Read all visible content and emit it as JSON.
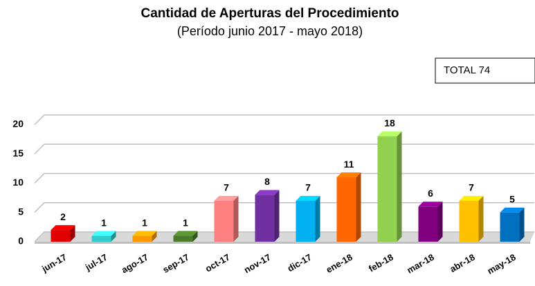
{
  "chart_data": {
    "type": "bar3d",
    "title": "Cantidad de Aperturas del Procedimiento",
    "subtitle": "(Período junio 2017 - mayo 2018)",
    "annotation": "TOTAL 74",
    "categories": [
      "jun-17",
      "jul-17",
      "ago-17",
      "sep-17",
      "oct-17",
      "nov-17",
      "dic-17",
      "ene-18",
      "feb-18",
      "mar-18",
      "abr-18",
      "may-18"
    ],
    "values": [
      2,
      1,
      1,
      1,
      7,
      8,
      7,
      11,
      18,
      6,
      7,
      5
    ],
    "colors": [
      "#e00000",
      "#33cccc",
      "#ff9900",
      "#4a7a2a",
      "#ff8080",
      "#7030a0",
      "#00b0f0",
      "#ff6600",
      "#92d050",
      "#800080",
      "#ffc000",
      "#0070c0"
    ],
    "ylim": [
      0,
      20
    ],
    "yticks": [
      0,
      5,
      10,
      15,
      20
    ],
    "grid": true
  }
}
